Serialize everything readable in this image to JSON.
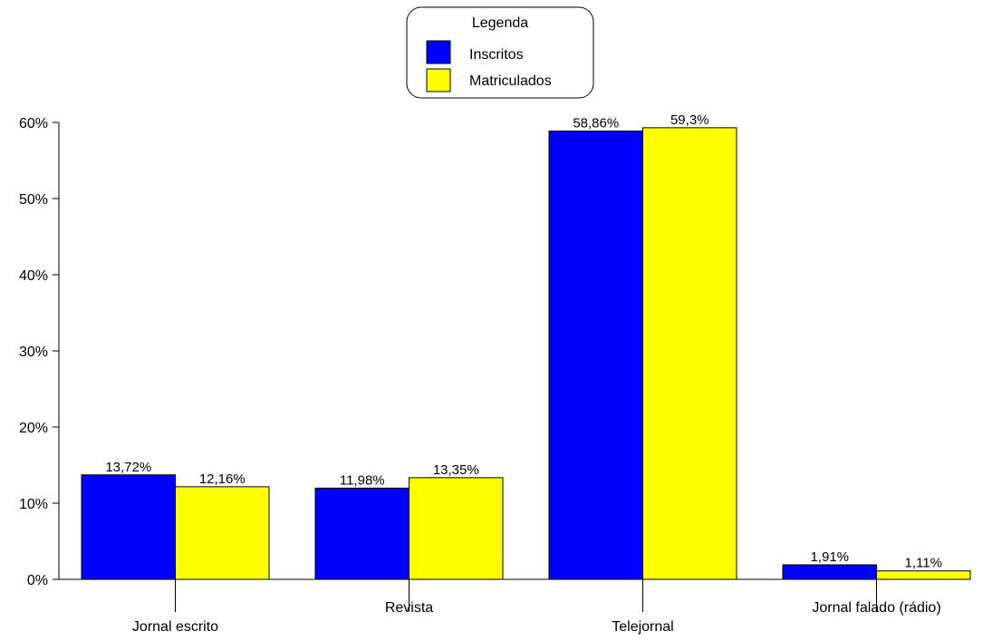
{
  "chart_data": {
    "type": "bar",
    "categories": [
      "Jornal escrito",
      "Revista",
      "Telejornal",
      "Jornal falado (rádio)"
    ],
    "series": [
      {
        "name": "Inscritos",
        "values": [
          13.72,
          11.98,
          58.86,
          1.91
        ],
        "labels": [
          "13,72%",
          "11,98%",
          "58,86%",
          "1,91%"
        ],
        "color": "#0000FF"
      },
      {
        "name": "Matriculados",
        "values": [
          12.16,
          13.35,
          59.3,
          1.11
        ],
        "labels": [
          "12,16%",
          "13,35%",
          "59,3%",
          "1,11%"
        ],
        "color": "#FFFF00"
      }
    ],
    "yticks": [
      0,
      10,
      20,
      30,
      40,
      50,
      60
    ],
    "ytick_labels": [
      "0%",
      "10%",
      "20%",
      "30%",
      "40%",
      "50%",
      "60%"
    ],
    "ylim": [
      0,
      60
    ],
    "legend": {
      "title": "Legenda",
      "placement": "top-center"
    },
    "grid": false
  }
}
